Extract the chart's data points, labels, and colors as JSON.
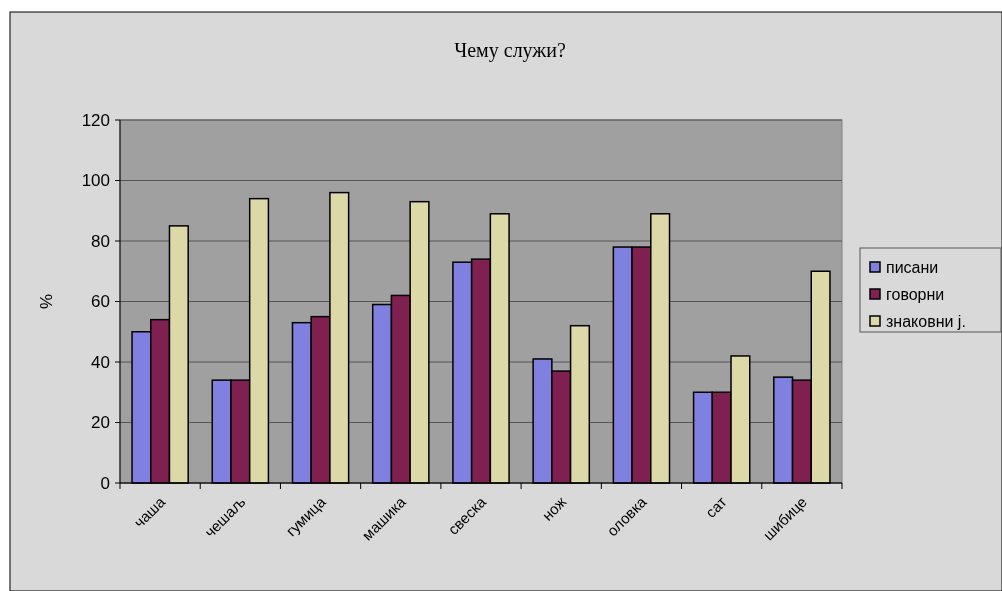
{
  "chart_data": {
    "type": "bar",
    "title": "Чему служи?",
    "ylabel": "%",
    "categories": [
      "чаша",
      "чешаљ",
      "гумица",
      "машика",
      "свеска",
      "нож",
      "оловка",
      "сат",
      "шибице"
    ],
    "series": [
      {
        "name": "писани",
        "color": "#8080e0",
        "values": [
          50,
          34,
          53,
          59,
          73,
          41,
          78,
          30,
          35
        ]
      },
      {
        "name": "говорни",
        "color": "#802050",
        "values": [
          54,
          34,
          55,
          62,
          74,
          37,
          78,
          30,
          34
        ]
      },
      {
        "name": "знаковни ј.",
        "color": "#dcd8a8",
        "values": [
          85,
          94,
          96,
          93,
          89,
          52,
          89,
          42,
          70
        ]
      }
    ],
    "ylim": [
      0,
      120
    ],
    "yticks": [
      0,
      20,
      40,
      60,
      80,
      100,
      120
    ],
    "grid": "y",
    "legend": "right"
  }
}
